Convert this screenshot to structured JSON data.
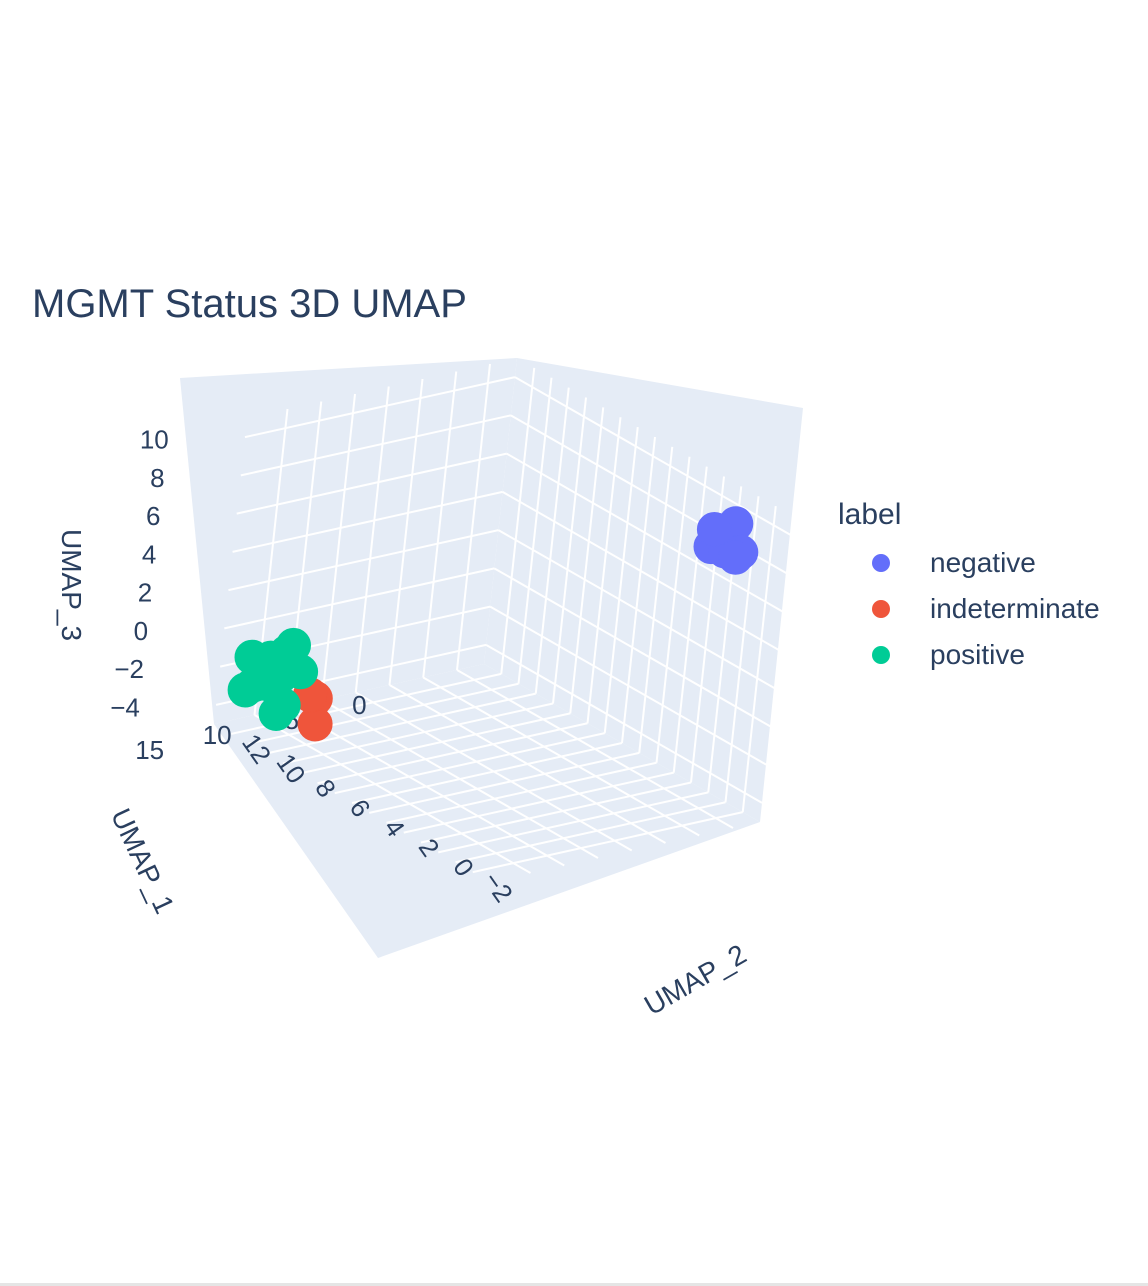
{
  "chart_data": {
    "type": "scatter",
    "title": "MGMT Status 3D UMAP",
    "axes": {
      "x": {
        "label": "UMAP_1",
        "ticks": [
          "0",
          "5",
          "10",
          "15"
        ]
      },
      "y": {
        "label": "UMAP_2",
        "ticks": [
          "12",
          "10",
          "8",
          "6",
          "4",
          "2",
          "0",
          "−2"
        ]
      },
      "z": {
        "label": "UMAP_3",
        "ticks": [
          "10",
          "8",
          "6",
          "4",
          "2",
          "0",
          "−2",
          "−4"
        ]
      }
    },
    "legend": {
      "title": "label",
      "placement": "right"
    },
    "series": [
      {
        "name": "negative",
        "color": "#636efa",
        "points": [
          [
            0,
            -1,
            9
          ],
          [
            1,
            -1.5,
            9.5
          ],
          [
            0.5,
            -0.5,
            8.5
          ],
          [
            -0.5,
            -1,
            9.8
          ],
          [
            1.5,
            -2,
            9.2
          ],
          [
            0,
            -1.8,
            8.8
          ],
          [
            0.8,
            -0.8,
            9.6
          ],
          [
            -0.2,
            -1.4,
            8.3
          ]
        ]
      },
      {
        "name": "indeterminate",
        "color": "#ef553b",
        "points": [
          [
            14,
            10.5,
            -3
          ],
          [
            14.5,
            10,
            -4
          ],
          [
            13,
            11.5,
            -3.5
          ]
        ]
      },
      {
        "name": "positive",
        "color": "#00cc96",
        "points": [
          [
            15,
            12,
            -2
          ],
          [
            15.5,
            12.5,
            -3
          ],
          [
            14,
            12,
            -1
          ],
          [
            16,
            11.5,
            -2.5
          ],
          [
            14.5,
            12.8,
            -2
          ],
          [
            15.2,
            11.8,
            -1.5
          ],
          [
            16.5,
            12.2,
            -2.8
          ],
          [
            14.8,
            12.6,
            -3.2
          ],
          [
            15.8,
            12.9,
            -1.8
          ],
          [
            13.8,
            11.6,
            -2.2
          ],
          [
            15.4,
            11.2,
            -3.5
          ],
          [
            16.2,
            12.8,
            -3.4
          ],
          [
            14.2,
            12.4,
            -2.8
          ],
          [
            15,
            11.6,
            -1
          ],
          [
            15.6,
            11.4,
            -4
          ]
        ]
      }
    ]
  }
}
